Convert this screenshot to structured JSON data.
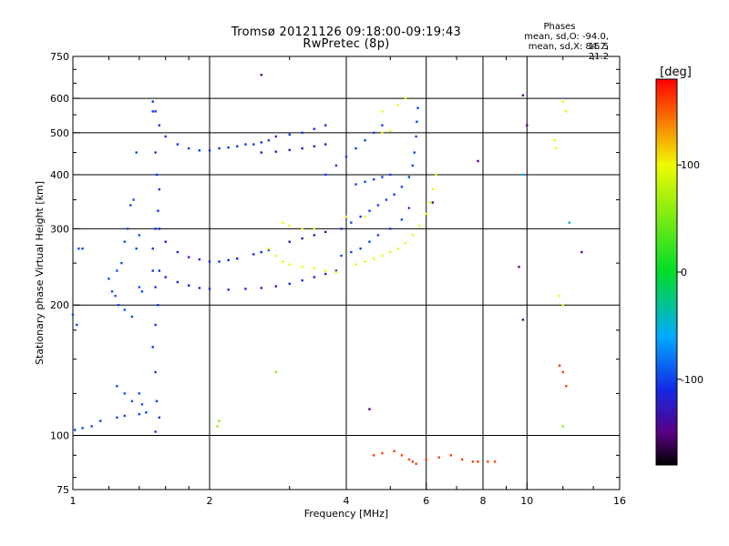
{
  "header": {
    "title_line1": "Tromsø 20121126 09:18:00-09:19:43",
    "title_line2": "RwPretec (8p)"
  },
  "phase_info": {
    "heading": "Phases",
    "line_o": "mean, sd,O: -94.0, 15.5",
    "line_x": "mean, sd,X: 84.7, 21.2"
  },
  "colorbar": {
    "unit": "[deg]",
    "ticks": [
      "100",
      "0",
      "-100"
    ],
    "range": [
      -180,
      180
    ]
  },
  "chart_data": {
    "type": "scatter",
    "title": "Tromsø 20121126 09:18:00-09:19:43",
    "subtitle": "RwPretec (8p)",
    "xlabel": "Frequency [MHz]",
    "ylabel": "Stationary phase Virtual Height [km]",
    "x_scale": "log",
    "y_scale": "log",
    "xlim": [
      1,
      16
    ],
    "ylim": [
      75,
      750
    ],
    "x_ticks": [
      1,
      2,
      4,
      6,
      8,
      10,
      16
    ],
    "x_tick_labels": [
      "1",
      "2",
      "4",
      "6",
      "8",
      "10",
      "16"
    ],
    "y_ticks": [
      75,
      100,
      200,
      300,
      400,
      500,
      600,
      750
    ],
    "y_tick_labels": [
      "75",
      "100",
      "200",
      "300",
      "400",
      "500",
      "600",
      "750"
    ],
    "grid_x": [
      2,
      4,
      6,
      8,
      10
    ],
    "grid_y": [
      100,
      200,
      300,
      400,
      500,
      600
    ],
    "color_scale": "phase_deg",
    "series": [
      {
        "phase": -100,
        "points": [
          [
            1.01,
            103
          ],
          [
            1.05,
            104
          ],
          [
            1.1,
            105
          ],
          [
            1.15,
            108
          ],
          [
            1.25,
            110
          ],
          [
            1.3,
            111
          ],
          [
            1.4,
            112
          ],
          [
            1.45,
            113
          ],
          [
            1.05,
            270
          ],
          [
            1.03,
            270
          ],
          [
            1.0,
            190
          ],
          [
            1.02,
            180
          ]
        ]
      },
      {
        "phase": -95,
        "points": [
          [
            1.2,
            230
          ],
          [
            1.25,
            240
          ],
          [
            1.28,
            250
          ],
          [
            1.3,
            280
          ],
          [
            1.32,
            300
          ],
          [
            1.34,
            340
          ],
          [
            1.36,
            350
          ],
          [
            1.22,
            215
          ],
          [
            1.24,
            210
          ],
          [
            1.26,
            200
          ],
          [
            1.3,
            195
          ],
          [
            1.35,
            188
          ],
          [
            1.4,
            220
          ],
          [
            1.42,
            215
          ],
          [
            1.4,
            290
          ],
          [
            1.38,
            270
          ],
          [
            1.25,
            130
          ],
          [
            1.3,
            125
          ],
          [
            1.35,
            120
          ],
          [
            1.4,
            125
          ],
          [
            1.42,
            118
          ],
          [
            1.38,
            450
          ]
        ]
      },
      {
        "phase": -105,
        "points": [
          [
            1.5,
            590
          ],
          [
            1.52,
            560
          ],
          [
            1.55,
            520
          ],
          [
            1.6,
            490
          ],
          [
            1.7,
            470
          ],
          [
            1.8,
            460
          ],
          [
            1.9,
            455
          ],
          [
            2.0,
            455
          ],
          [
            2.1,
            460
          ],
          [
            2.2,
            462
          ],
          [
            2.3,
            465
          ],
          [
            2.4,
            470
          ],
          [
            2.5,
            470
          ],
          [
            2.6,
            475
          ],
          [
            2.7,
            480
          ],
          [
            2.8,
            490
          ],
          [
            3.0,
            495
          ],
          [
            3.2,
            500
          ],
          [
            3.4,
            510
          ],
          [
            3.6,
            520
          ],
          [
            1.5,
            560
          ],
          [
            1.52,
            450
          ],
          [
            1.53,
            400
          ],
          [
            1.55,
            370
          ],
          [
            1.54,
            330
          ],
          [
            1.52,
            300
          ],
          [
            1.5,
            270
          ],
          [
            1.5,
            240
          ],
          [
            1.52,
            220
          ],
          [
            1.54,
            200
          ],
          [
            1.52,
            180
          ],
          [
            1.5,
            160
          ],
          [
            1.52,
            140
          ],
          [
            1.53,
            120
          ],
          [
            1.55,
            110
          ],
          [
            1.52,
            102
          ]
        ]
      },
      {
        "phase": -110,
        "points": [
          [
            1.55,
            300
          ],
          [
            1.6,
            280
          ],
          [
            1.7,
            265
          ],
          [
            1.8,
            258
          ],
          [
            1.9,
            255
          ],
          [
            2.0,
            252
          ],
          [
            2.1,
            252
          ],
          [
            2.2,
            254
          ],
          [
            2.3,
            256
          ],
          [
            2.5,
            262
          ],
          [
            2.6,
            265
          ],
          [
            2.7,
            268
          ],
          [
            1.55,
            240
          ],
          [
            1.6,
            232
          ],
          [
            1.7,
            226
          ],
          [
            1.8,
            222
          ],
          [
            1.9,
            219
          ],
          [
            2.0,
            218
          ],
          [
            2.2,
            217
          ],
          [
            2.4,
            218
          ],
          [
            2.6,
            219
          ],
          [
            2.8,
            221
          ],
          [
            3.0,
            224
          ],
          [
            3.2,
            228
          ],
          [
            3.4,
            232
          ],
          [
            3.6,
            236
          ],
          [
            3.8,
            240
          ]
        ]
      },
      {
        "phase": -100,
        "points": [
          [
            3.9,
            300
          ],
          [
            4.1,
            310
          ],
          [
            4.3,
            320
          ],
          [
            4.5,
            330
          ],
          [
            4.7,
            340
          ],
          [
            4.9,
            350
          ],
          [
            5.1,
            360
          ],
          [
            5.3,
            375
          ],
          [
            5.5,
            395
          ],
          [
            5.6,
            420
          ],
          [
            5.65,
            450
          ],
          [
            5.7,
            490
          ],
          [
            5.72,
            530
          ],
          [
            5.75,
            570
          ],
          [
            3.6,
            400
          ],
          [
            3.8,
            420
          ],
          [
            4.0,
            440
          ],
          [
            4.2,
            460
          ],
          [
            4.4,
            480
          ],
          [
            4.6,
            500
          ],
          [
            4.8,
            520
          ],
          [
            4.2,
            380
          ],
          [
            4.4,
            385
          ],
          [
            4.6,
            390
          ],
          [
            4.8,
            395
          ],
          [
            5.0,
            400
          ],
          [
            3.9,
            260
          ],
          [
            4.1,
            265
          ],
          [
            4.3,
            270
          ],
          [
            4.5,
            280
          ],
          [
            4.7,
            290
          ],
          [
            5.0,
            300
          ],
          [
            5.3,
            315
          ],
          [
            5.5,
            335
          ]
        ]
      },
      {
        "phase": 100,
        "points": [
          [
            4.2,
            248
          ],
          [
            4.4,
            252
          ],
          [
            4.6,
            256
          ],
          [
            4.8,
            260
          ],
          [
            5.0,
            265
          ],
          [
            5.2,
            270
          ],
          [
            5.4,
            278
          ],
          [
            5.6,
            290
          ],
          [
            5.8,
            305
          ],
          [
            6.0,
            325
          ],
          [
            6.1,
            345
          ],
          [
            6.2,
            370
          ],
          [
            6.3,
            400
          ],
          [
            2.7,
            270
          ],
          [
            2.8,
            260
          ],
          [
            2.9,
            252
          ],
          [
            3.0,
            248
          ],
          [
            3.2,
            245
          ],
          [
            3.4,
            243
          ],
          [
            3.6,
            240
          ],
          [
            3.8,
            238
          ],
          [
            2.9,
            310
          ],
          [
            3.0,
            305
          ],
          [
            3.2,
            300
          ],
          [
            3.4,
            300
          ],
          [
            4.0,
            320
          ],
          [
            4.4,
            320
          ],
          [
            4.8,
            560
          ],
          [
            5.2,
            580
          ],
          [
            5.4,
            600
          ],
          [
            4.8,
            500
          ],
          [
            5.0,
            505
          ],
          [
            12.0,
            590
          ],
          [
            12.2,
            560
          ],
          [
            11.5,
            480
          ],
          [
            11.6,
            460
          ],
          [
            11.8,
            210
          ],
          [
            12.0,
            200
          ]
        ]
      },
      {
        "phase": -130,
        "points": [
          [
            2.6,
            450
          ],
          [
            2.8,
            452
          ],
          [
            3.0,
            456
          ],
          [
            3.2,
            460
          ],
          [
            3.4,
            465
          ],
          [
            3.6,
            470
          ],
          [
            3.0,
            280
          ],
          [
            3.2,
            285
          ],
          [
            3.4,
            290
          ],
          [
            3.6,
            295
          ]
        ]
      },
      {
        "phase": 160,
        "points": [
          [
            4.6,
            90
          ],
          [
            4.8,
            91
          ],
          [
            5.1,
            92
          ],
          [
            5.3,
            90
          ],
          [
            5.5,
            88
          ],
          [
            5.6,
            87
          ],
          [
            5.7,
            86
          ],
          [
            6.0,
            88
          ],
          [
            6.4,
            89
          ],
          [
            6.8,
            90
          ],
          [
            7.2,
            88
          ],
          [
            7.6,
            87
          ],
          [
            7.8,
            87
          ],
          [
            8.2,
            87
          ],
          [
            8.5,
            87
          ],
          [
            11.8,
            145
          ],
          [
            12.0,
            140
          ],
          [
            12.2,
            130
          ]
        ]
      },
      {
        "phase": 60,
        "points": [
          [
            2.8,
            140
          ],
          [
            2.1,
            108
          ],
          [
            2.08,
            105
          ],
          [
            12.0,
            105
          ]
        ]
      },
      {
        "phase": -60,
        "points": [
          [
            9.8,
            400
          ],
          [
            12.4,
            310
          ]
        ]
      },
      {
        "phase": -150,
        "points": [
          [
            2.6,
            680
          ],
          [
            9.8,
            610
          ],
          [
            10.0,
            520
          ],
          [
            9.6,
            245
          ],
          [
            9.8,
            185
          ],
          [
            4.5,
            115
          ],
          [
            7.8,
            430
          ],
          [
            13.2,
            265
          ],
          [
            6.2,
            345
          ]
        ]
      }
    ]
  }
}
